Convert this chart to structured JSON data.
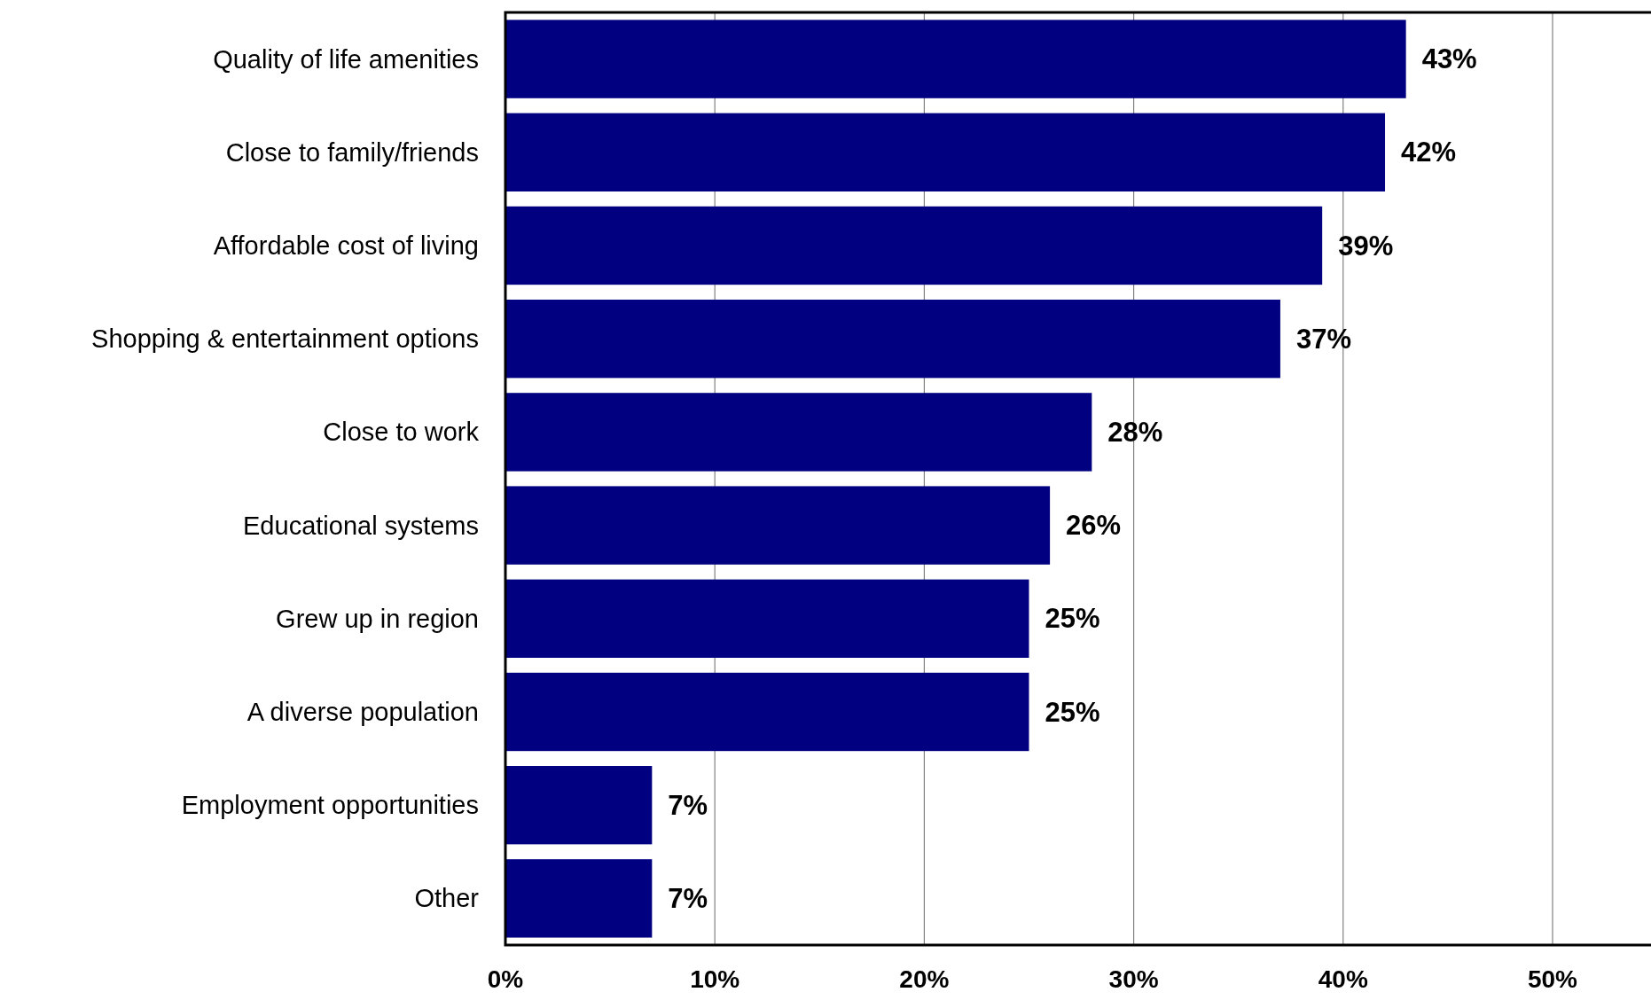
{
  "chart_data": {
    "type": "bar",
    "orientation": "horizontal",
    "categories": [
      "Quality of life amenities",
      "Close to family/friends",
      "Affordable cost of living",
      "Shopping & entertainment options",
      "Close to work",
      "Educational systems",
      "Grew up in region",
      "A diverse population",
      "Employment opportunities",
      "Other"
    ],
    "values": [
      43,
      42,
      39,
      37,
      28,
      26,
      25,
      25,
      7,
      7
    ],
    "value_labels": [
      "43%",
      "42%",
      "39%",
      "37%",
      "28%",
      "26%",
      "25%",
      "25%",
      "7%",
      "7%"
    ],
    "color": "#000080",
    "xlim": [
      0,
      54.7
    ],
    "xticks": [
      {
        "value": 0,
        "label": "0%"
      },
      {
        "value": 10,
        "label": "10%"
      },
      {
        "value": 20,
        "label": "20%"
      },
      {
        "value": 30,
        "label": "30%"
      },
      {
        "value": 40,
        "label": "40%"
      },
      {
        "value": 50,
        "label": "50%"
      }
    ],
    "grid": "x"
  }
}
